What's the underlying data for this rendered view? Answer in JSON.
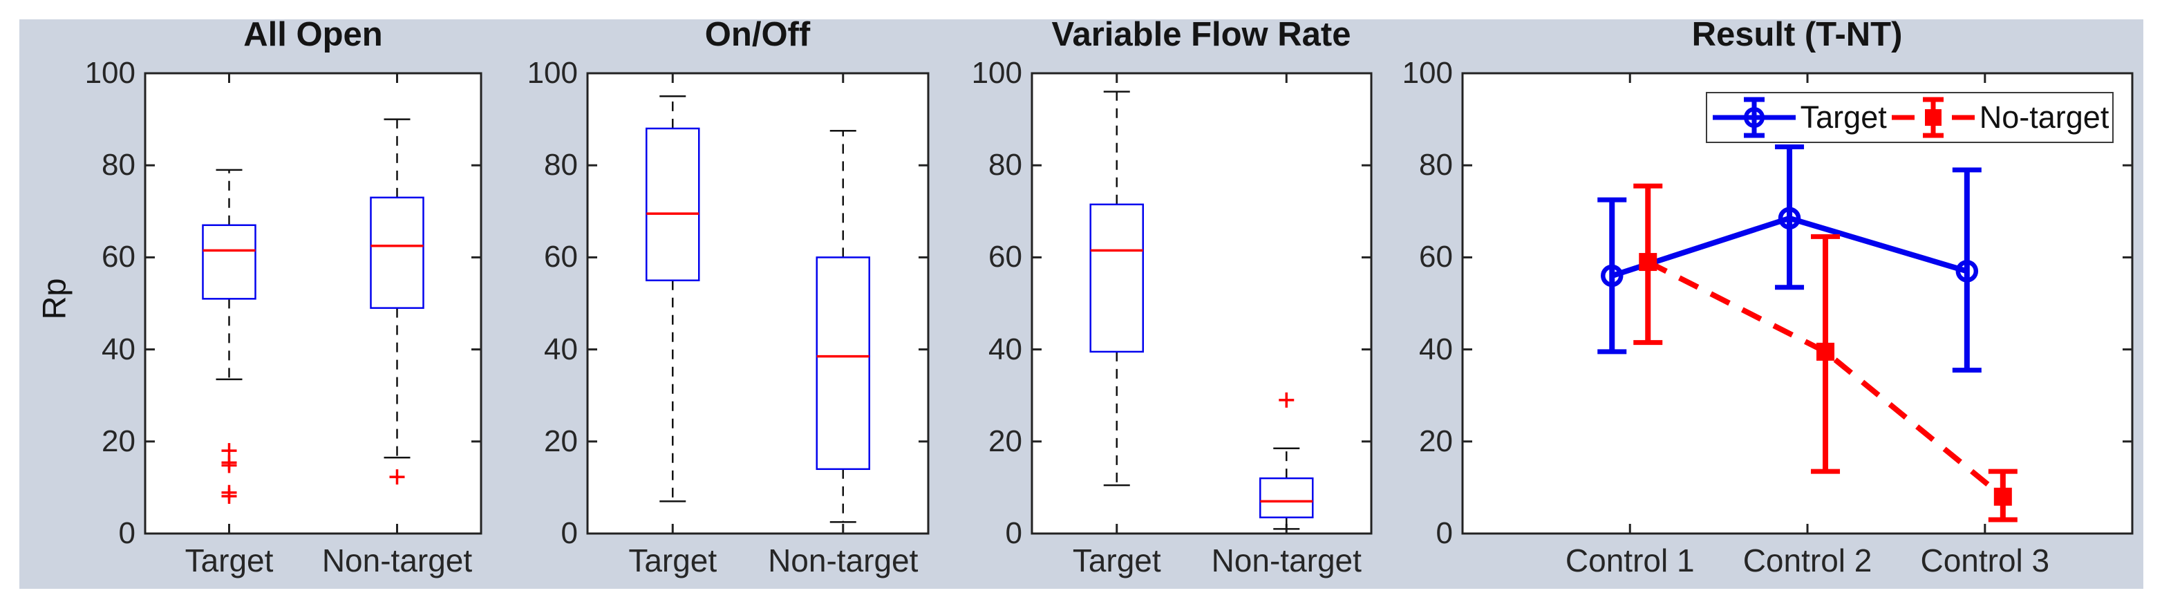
{
  "figure": {
    "ylabel": "Rp",
    "ylim": [
      0,
      100
    ],
    "yticks": [
      0,
      20,
      40,
      60,
      80,
      100
    ],
    "background_color": "#ffffff",
    "panel_color": "#cdd4e0",
    "axis_color": "#222222",
    "text_color": "#262626",
    "accent_blue": "#0202ee",
    "accent_red": "#ff0000"
  },
  "chart_data": [
    {
      "type": "box",
      "title": "All Open",
      "ylabel": "Rp",
      "ylim": [
        0,
        100
      ],
      "yticks": [
        0,
        20,
        40,
        60,
        80,
        100
      ],
      "categories": [
        "Target",
        "Non-target"
      ],
      "boxes": [
        {
          "category": "Target",
          "whisker_low": 33.5,
          "q1": 51,
          "median": 61.5,
          "q3": 67,
          "whisker_high": 79,
          "outliers": [
            18,
            15.4,
            14.8,
            8.9,
            8.1
          ]
        },
        {
          "category": "Non-target",
          "whisker_low": 16.5,
          "q1": 49,
          "median": 62.5,
          "q3": 73,
          "whisker_high": 90,
          "outliers": [
            12.3
          ]
        }
      ]
    },
    {
      "type": "box",
      "title": "On/Off",
      "ylim": [
        0,
        100
      ],
      "yticks": [
        0,
        20,
        40,
        60,
        80,
        100
      ],
      "categories": [
        "Target",
        "Non-target"
      ],
      "boxes": [
        {
          "category": "Target",
          "whisker_low": 7,
          "q1": 55,
          "median": 69.5,
          "q3": 88,
          "whisker_high": 95,
          "outliers": []
        },
        {
          "category": "Non-target",
          "whisker_low": 2.5,
          "q1": 14,
          "median": 38.5,
          "q3": 60,
          "whisker_high": 87.5,
          "outliers": []
        }
      ]
    },
    {
      "type": "box",
      "title": "Variable Flow Rate",
      "ylim": [
        0,
        100
      ],
      "yticks": [
        0,
        20,
        40,
        60,
        80,
        100
      ],
      "categories": [
        "Target",
        "Non-target"
      ],
      "boxes": [
        {
          "category": "Target",
          "whisker_low": 10.5,
          "q1": 39.5,
          "median": 61.5,
          "q3": 71.5,
          "whisker_high": 96,
          "outliers": []
        },
        {
          "category": "Non-target",
          "whisker_low": 1,
          "q1": 3.5,
          "median": 7,
          "q3": 12,
          "whisker_high": 18.5,
          "outliers": [
            29
          ]
        }
      ]
    },
    {
      "type": "errorbar",
      "title": "Result (T-NT)",
      "ylim": [
        0,
        100
      ],
      "yticks": [
        0,
        20,
        40,
        60,
        80,
        100
      ],
      "categories": [
        "Control 1",
        "Control 2",
        "Control 3"
      ],
      "legend_position": "top",
      "series": [
        {
          "name": "Target",
          "color": "#0202ee",
          "line": "solid",
          "marker": "circle",
          "y": [
            56,
            68.5,
            57
          ],
          "err_low": [
            39.5,
            53.5,
            35.5
          ],
          "err_high": [
            72.5,
            84,
            79
          ]
        },
        {
          "name": "No-target",
          "color": "#ff0000",
          "line": "dashed",
          "marker": "square",
          "y": [
            59,
            39.5,
            8
          ],
          "err_low": [
            41.5,
            13.5,
            3
          ],
          "err_high": [
            75.5,
            64.5,
            13.5
          ]
        }
      ]
    }
  ]
}
